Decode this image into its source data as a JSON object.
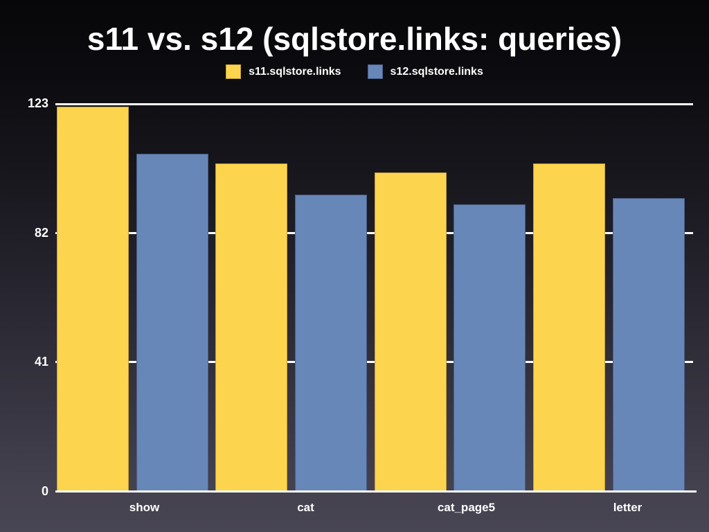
{
  "chart_data": {
    "type": "bar",
    "title": "s11 vs. s12 (sqlstore.links: queries)",
    "categories": [
      "show",
      "cat",
      "cat_page5",
      "letter"
    ],
    "series": [
      {
        "name": "s11.sqlstore.links",
        "color": "#fdd44e",
        "border_color": "#c2a138",
        "values": [
          122,
          104,
          101,
          104
        ]
      },
      {
        "name": "s12.sqlstore.links",
        "color": "#6787b8",
        "border_color": "#4a5f86",
        "values": [
          107,
          94,
          91,
          93
        ]
      }
    ],
    "xlabel": "",
    "ylabel": "",
    "ylim": [
      0,
      123
    ],
    "yticks": [
      0,
      41,
      82,
      123
    ],
    "grid": true,
    "legend_position": "top",
    "background_top_color": "#070709",
    "background_bottom_color": "#484554",
    "axis_color": "#ffffff",
    "text_color": "#ffffff"
  }
}
